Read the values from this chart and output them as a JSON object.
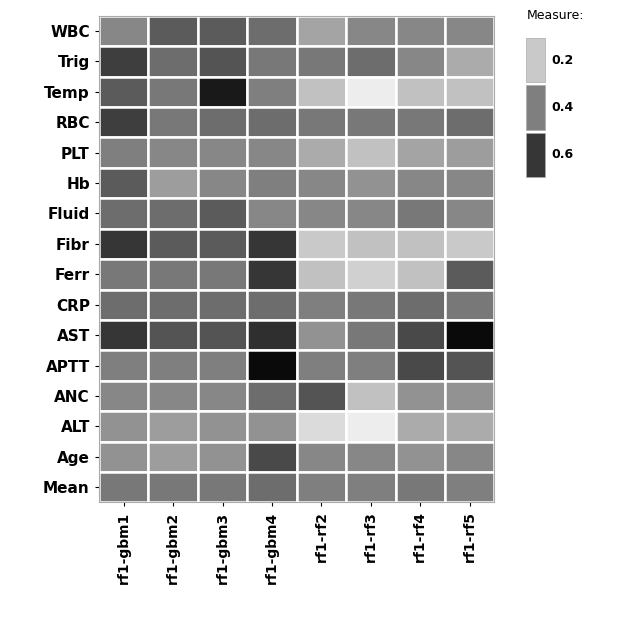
{
  "rows": [
    "WBC",
    "Trig",
    "Temp",
    "RBC",
    "PLT",
    "Hb",
    "Fluid",
    "Fibr",
    "Ferr",
    "CRP",
    "AST",
    "APTT",
    "ANC",
    "ALT",
    "Age",
    "Mean"
  ],
  "cols": [
    "rf1-gbm1",
    "rf1-gbm2",
    "rf1-gbm3",
    "rf1-gbm4",
    "rf1-rf2",
    "rf1-rf3",
    "rf1-rf4",
    "rf1-rf5"
  ],
  "data": [
    [
      0.38,
      0.5,
      0.5,
      0.45,
      0.3,
      0.38,
      0.38,
      0.38
    ],
    [
      0.58,
      0.45,
      0.52,
      0.42,
      0.42,
      0.45,
      0.38,
      0.28
    ],
    [
      0.5,
      0.42,
      0.68,
      0.4,
      0.22,
      0.1,
      0.22,
      0.22
    ],
    [
      0.58,
      0.42,
      0.45,
      0.45,
      0.42,
      0.42,
      0.42,
      0.45
    ],
    [
      0.4,
      0.38,
      0.38,
      0.38,
      0.28,
      0.22,
      0.3,
      0.32
    ],
    [
      0.5,
      0.32,
      0.38,
      0.4,
      0.38,
      0.35,
      0.38,
      0.38
    ],
    [
      0.45,
      0.45,
      0.5,
      0.38,
      0.38,
      0.38,
      0.42,
      0.38
    ],
    [
      0.6,
      0.5,
      0.5,
      0.6,
      0.2,
      0.22,
      0.22,
      0.2
    ],
    [
      0.42,
      0.42,
      0.42,
      0.6,
      0.22,
      0.18,
      0.22,
      0.5
    ],
    [
      0.45,
      0.45,
      0.45,
      0.45,
      0.4,
      0.42,
      0.45,
      0.42
    ],
    [
      0.6,
      0.52,
      0.52,
      0.62,
      0.35,
      0.42,
      0.55,
      0.72
    ],
    [
      0.4,
      0.4,
      0.4,
      0.72,
      0.4,
      0.4,
      0.55,
      0.52
    ],
    [
      0.38,
      0.38,
      0.38,
      0.45,
      0.52,
      0.22,
      0.35,
      0.35
    ],
    [
      0.35,
      0.32,
      0.35,
      0.35,
      0.15,
      0.1,
      0.28,
      0.28
    ],
    [
      0.35,
      0.32,
      0.35,
      0.55,
      0.38,
      0.38,
      0.35,
      0.38
    ],
    [
      0.42,
      0.42,
      0.42,
      0.45,
      0.4,
      0.4,
      0.42,
      0.4
    ]
  ],
  "vmin": 0.05,
  "vmax": 0.75,
  "colorbar_ticks": [
    0.2,
    0.4,
    0.6
  ],
  "colorbar_label": "Measure:",
  "plot_bg_color": "#ebebeb",
  "grid_color": "#ffffff",
  "label_fontsize": 11,
  "tick_fontsize": 10
}
